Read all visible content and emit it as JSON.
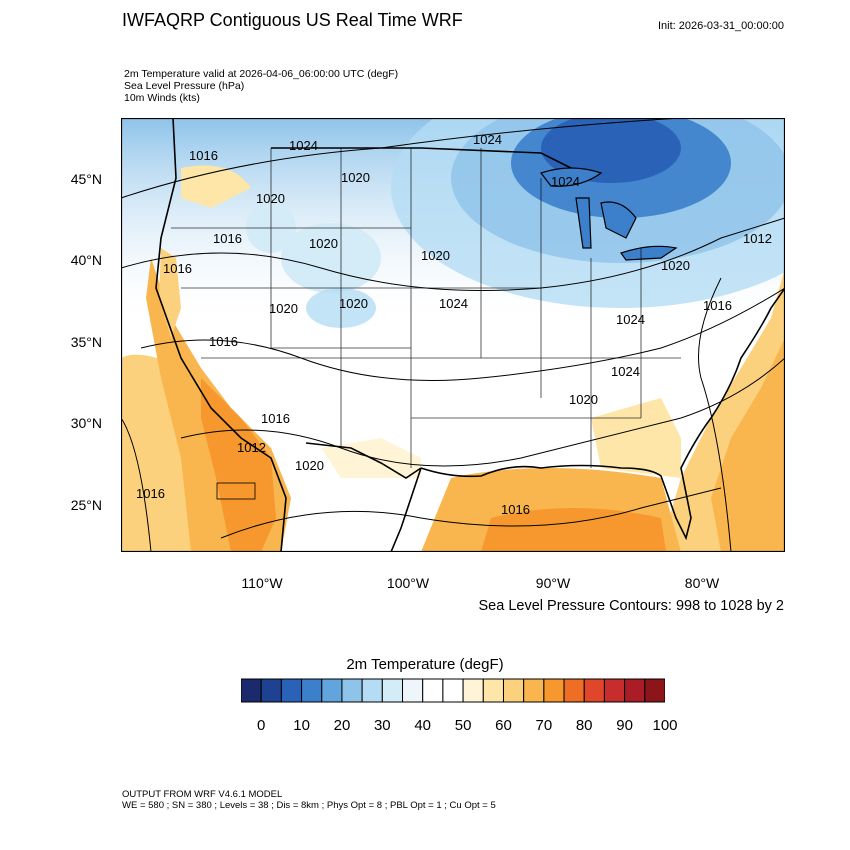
{
  "header": {
    "title": "IWFAQRP Contiguous US Real Time WRF",
    "init": "Init: 2026-03-31_00:00:00"
  },
  "fields": [
    "2m Temperature valid at 2026-04-06_06:00:00 UTC   (degF)",
    "Sea Level Pressure   (hPa)",
    "10m Winds   (kts)"
  ],
  "axes": {
    "lat_labels": [
      "45°N",
      "40°N",
      "35°N",
      "30°N",
      "25°N"
    ],
    "lon_labels": [
      "110°W",
      "100°W",
      "90°W",
      "80°W"
    ]
  },
  "contour_note": "Sea Level Pressure Contours: 998 to 1028 by 2",
  "isobar_labels": [
    "1016",
    "1024",
    "1024",
    "1020",
    "1024",
    "1020",
    "1016",
    "1020",
    "1012",
    "1016",
    "1020",
    "1020",
    "1024",
    "1020",
    "1016",
    "1020",
    "1024",
    "1016",
    "1024",
    "1020",
    "1016",
    "1012",
    "1020",
    "1016",
    "1016"
  ],
  "colorbar": {
    "title": "2m Temperature  (degF)",
    "colors": [
      "#1a2a6c",
      "#1e4192",
      "#2a62b8",
      "#3c80cc",
      "#62a4dc",
      "#8ec3ea",
      "#b4dcf4",
      "#d4ebf8",
      "#eef6fb",
      "#ffffff",
      "#ffffff",
      "#fff5d6",
      "#fde6a8",
      "#fbd17d",
      "#f9b54e",
      "#f7982e",
      "#ee6e26",
      "#e0462a",
      "#c62d2c",
      "#ab1d26",
      "#8b1519"
    ],
    "tick_labels": [
      "0",
      "10",
      "20",
      "30",
      "40",
      "50",
      "60",
      "70",
      "80",
      "90",
      "100"
    ]
  },
  "footer": [
    "OUTPUT FROM WRF V4.6.1 MODEL",
    "WE = 580 ; SN = 380 ; Levels = 38 ; Dis = 8km ; Phys Opt = 8 ; PBL Opt = 1 ; Cu Opt = 5"
  ]
}
